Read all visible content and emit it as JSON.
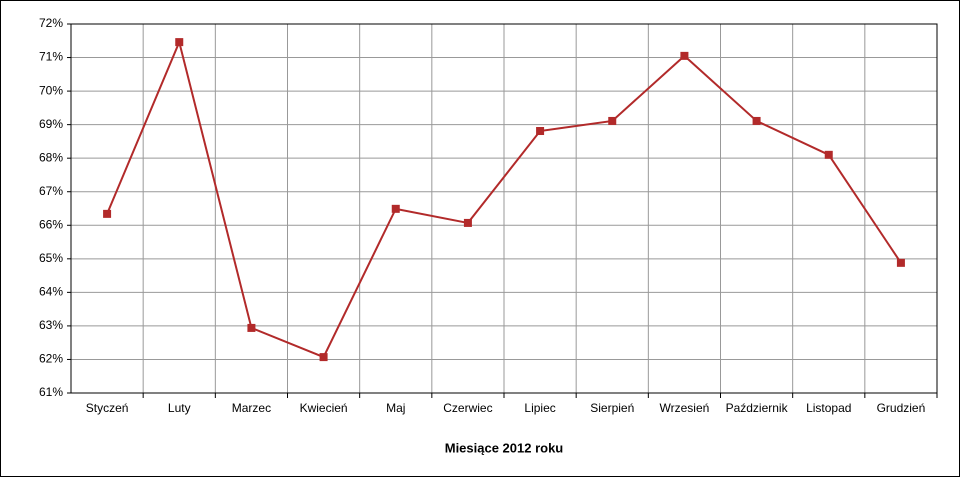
{
  "chart_data": {
    "type": "line",
    "x_label": "Miesiące 2012 roku",
    "categories": [
      "Styczeń",
      "Luty",
      "Marzec",
      "Kwiecień",
      "Maj",
      "Czerwiec",
      "Lipiec",
      "Sierpień",
      "Wrzesień",
      "Październik",
      "Listopad",
      "Grudzień"
    ],
    "values": [
      66.34,
      71.46,
      62.94,
      62.07,
      66.49,
      66.07,
      68.81,
      69.11,
      71.05,
      69.11,
      68.1,
      64.88
    ],
    "color": "#b22a2a",
    "ylim": [
      61,
      72
    ],
    "yticks": [
      {
        "value": 61,
        "label": "61%"
      },
      {
        "value": 62,
        "label": "62%"
      },
      {
        "value": 63,
        "label": "63%"
      },
      {
        "value": 64,
        "label": "64%"
      },
      {
        "value": 65,
        "label": "65%"
      },
      {
        "value": 66,
        "label": "66%"
      },
      {
        "value": 67,
        "label": "67%"
      },
      {
        "value": 68,
        "label": "68%"
      },
      {
        "value": 69,
        "label": "69%"
      },
      {
        "value": 70,
        "label": "70%"
      },
      {
        "value": 71,
        "label": "71%"
      },
      {
        "value": 72,
        "label": "72%"
      }
    ],
    "grid": true
  }
}
